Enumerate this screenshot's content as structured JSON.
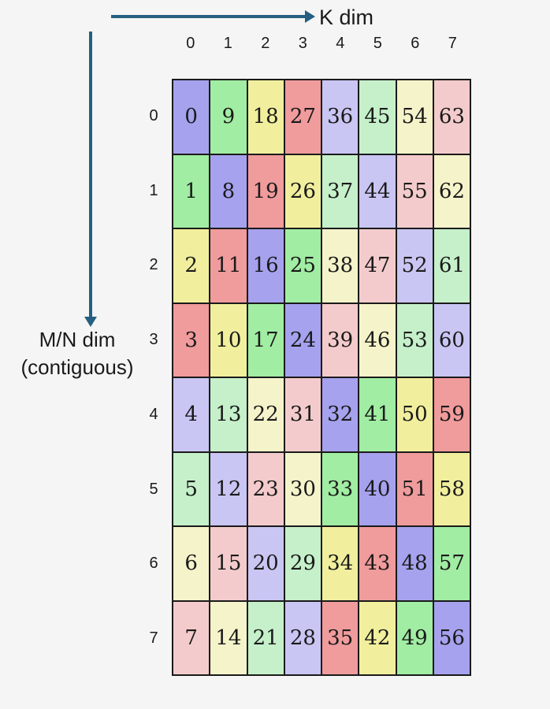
{
  "axes": {
    "k_dim_label": "K dim",
    "mn_dim_label_line1": "M/N dim",
    "mn_dim_label_line2": "(contiguous)",
    "arrow_color": "#255f81"
  },
  "column_headers": [
    "0",
    "1",
    "2",
    "3",
    "4",
    "5",
    "6",
    "7"
  ],
  "row_headers": [
    "0",
    "1",
    "2",
    "3",
    "4",
    "5",
    "6",
    "7"
  ],
  "grid": {
    "rows": [
      [
        0,
        9,
        18,
        27,
        36,
        45,
        54,
        63
      ],
      [
        1,
        8,
        19,
        26,
        37,
        44,
        55,
        62
      ],
      [
        2,
        11,
        16,
        25,
        38,
        47,
        52,
        61
      ],
      [
        3,
        10,
        17,
        24,
        39,
        46,
        53,
        60
      ],
      [
        4,
        13,
        22,
        31,
        32,
        41,
        50,
        59
      ],
      [
        5,
        12,
        23,
        30,
        33,
        40,
        51,
        58
      ],
      [
        6,
        15,
        20,
        29,
        34,
        43,
        48,
        57
      ],
      [
        7,
        14,
        21,
        28,
        35,
        42,
        49,
        56
      ]
    ],
    "cell_color_rule": "value mod 8",
    "mod8_palette": [
      "#a6a2ee",
      "#a1eda3",
      "#f1ef9d",
      "#f09b9c",
      "#c9c6f3",
      "#c5f0ca",
      "#f5f3ca",
      "#f4cbcc"
    ]
  },
  "colors": {
    "background": "#f4f5f4",
    "grid_line": "#1a1a1a",
    "text": "#1a1a1a"
  }
}
